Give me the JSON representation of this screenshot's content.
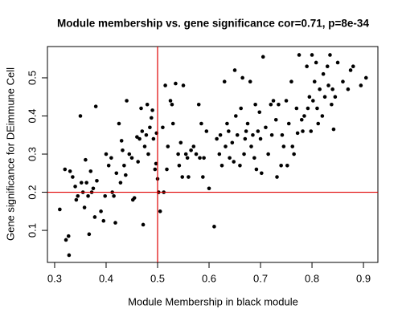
{
  "chart_data": {
    "type": "scatter",
    "title": "Module membership vs. gene significance cor=0.71, p=8e-34",
    "x_label": "Module Membership in black module",
    "y_label": "Gene significance for DEimmune Cell",
    "color": "#000000",
    "xlim": [
      0.286,
      0.928
    ],
    "ylim": [
      0.016,
      0.582
    ],
    "xticks": [
      0.3,
      0.4,
      0.5,
      0.6,
      0.7,
      0.8,
      0.9
    ],
    "yticks": [
      0.1,
      0.2,
      0.3,
      0.4,
      0.5
    ],
    "reference_lines": {
      "x": 0.5,
      "y": 0.2,
      "color": "#e00000"
    },
    "x": [
      0.31,
      0.32,
      0.322,
      0.327,
      0.328,
      0.33,
      0.335,
      0.34,
      0.342,
      0.345,
      0.35,
      0.352,
      0.355,
      0.358,
      0.36,
      0.362,
      0.365,
      0.367,
      0.37,
      0.372,
      0.375,
      0.378,
      0.38,
      0.382,
      0.39,
      0.395,
      0.398,
      0.4,
      0.405,
      0.41,
      0.412,
      0.415,
      0.418,
      0.42,
      0.425,
      0.428,
      0.43,
      0.432,
      0.435,
      0.438,
      0.44,
      0.445,
      0.45,
      0.452,
      0.455,
      0.46,
      0.462,
      0.465,
      0.468,
      0.47,
      0.472,
      0.475,
      0.478,
      0.48,
      0.482,
      0.485,
      0.488,
      0.49,
      0.492,
      0.495,
      0.497,
      0.498,
      0.5,
      0.502,
      0.505,
      0.51,
      0.512,
      0.515,
      0.518,
      0.52,
      0.525,
      0.528,
      0.53,
      0.535,
      0.54,
      0.542,
      0.545,
      0.548,
      0.55,
      0.555,
      0.558,
      0.56,
      0.565,
      0.57,
      0.575,
      0.58,
      0.582,
      0.585,
      0.588,
      0.59,
      0.595,
      0.6,
      0.61,
      0.615,
      0.62,
      0.622,
      0.625,
      0.63,
      0.632,
      0.635,
      0.638,
      0.64,
      0.645,
      0.648,
      0.65,
      0.652,
      0.655,
      0.66,
      0.662,
      0.665,
      0.668,
      0.67,
      0.672,
      0.675,
      0.68,
      0.682,
      0.685,
      0.688,
      0.69,
      0.692,
      0.695,
      0.698,
      0.7,
      0.702,
      0.705,
      0.71,
      0.715,
      0.72,
      0.722,
      0.725,
      0.73,
      0.732,
      0.735,
      0.74,
      0.742,
      0.745,
      0.75,
      0.752,
      0.755,
      0.76,
      0.762,
      0.765,
      0.77,
      0.772,
      0.775,
      0.78,
      0.782,
      0.785,
      0.79,
      0.792,
      0.795,
      0.798,
      0.8,
      0.802,
      0.805,
      0.808,
      0.81,
      0.812,
      0.815,
      0.82,
      0.822,
      0.825,
      0.83,
      0.832,
      0.835,
      0.838,
      0.84,
      0.842,
      0.845,
      0.85,
      0.86,
      0.87,
      0.875,
      0.88,
      0.895,
      0.905
    ],
    "y": [
      0.155,
      0.26,
      0.075,
      0.085,
      0.035,
      0.255,
      0.24,
      0.215,
      0.18,
      0.19,
      0.4,
      0.225,
      0.2,
      0.16,
      0.285,
      0.225,
      0.19,
      0.09,
      0.255,
      0.2,
      0.21,
      0.135,
      0.425,
      0.23,
      0.15,
      0.125,
      0.19,
      0.3,
      0.27,
      0.29,
      0.2,
      0.19,
      0.12,
      0.25,
      0.38,
      0.225,
      0.335,
      0.31,
      0.27,
      0.245,
      0.44,
      0.3,
      0.29,
      0.18,
      0.185,
      0.345,
      0.28,
      0.34,
      0.42,
      0.36,
      0.115,
      0.32,
      0.35,
      0.43,
      0.3,
      0.37,
      0.395,
      0.415,
      0.34,
      0.26,
      0.275,
      0.355,
      0.235,
      0.2,
      0.15,
      0.37,
      0.2,
      0.48,
      0.26,
      0.32,
      0.44,
      0.43,
      0.38,
      0.485,
      0.3,
      0.27,
      0.33,
      0.24,
      0.48,
      0.3,
      0.29,
      0.24,
      0.31,
      0.32,
      0.3,
      0.43,
      0.29,
      0.38,
      0.24,
      0.29,
      0.36,
      0.21,
      0.11,
      0.34,
      0.3,
      0.35,
      0.27,
      0.49,
      0.32,
      0.38,
      0.36,
      0.29,
      0.33,
      0.28,
      0.52,
      0.4,
      0.35,
      0.27,
      0.42,
      0.5,
      0.3,
      0.34,
      0.36,
      0.38,
      0.49,
      0.32,
      0.35,
      0.29,
      0.43,
      0.26,
      0.36,
      0.41,
      0.34,
      0.25,
      0.555,
      0.37,
      0.3,
      0.43,
      0.35,
      0.44,
      0.39,
      0.24,
      0.43,
      0.27,
      0.35,
      0.32,
      0.44,
      0.27,
      0.38,
      0.49,
      0.32,
      0.3,
      0.42,
      0.355,
      0.56,
      0.39,
      0.36,
      0.4,
      0.53,
      0.42,
      0.45,
      0.36,
      0.56,
      0.44,
      0.49,
      0.54,
      0.42,
      0.38,
      0.47,
      0.4,
      0.51,
      0.45,
      0.53,
      0.48,
      0.56,
      0.43,
      0.47,
      0.365,
      0.45,
      0.54,
      0.49,
      0.47,
      0.52,
      0.53,
      0.48,
      0.5
    ]
  }
}
